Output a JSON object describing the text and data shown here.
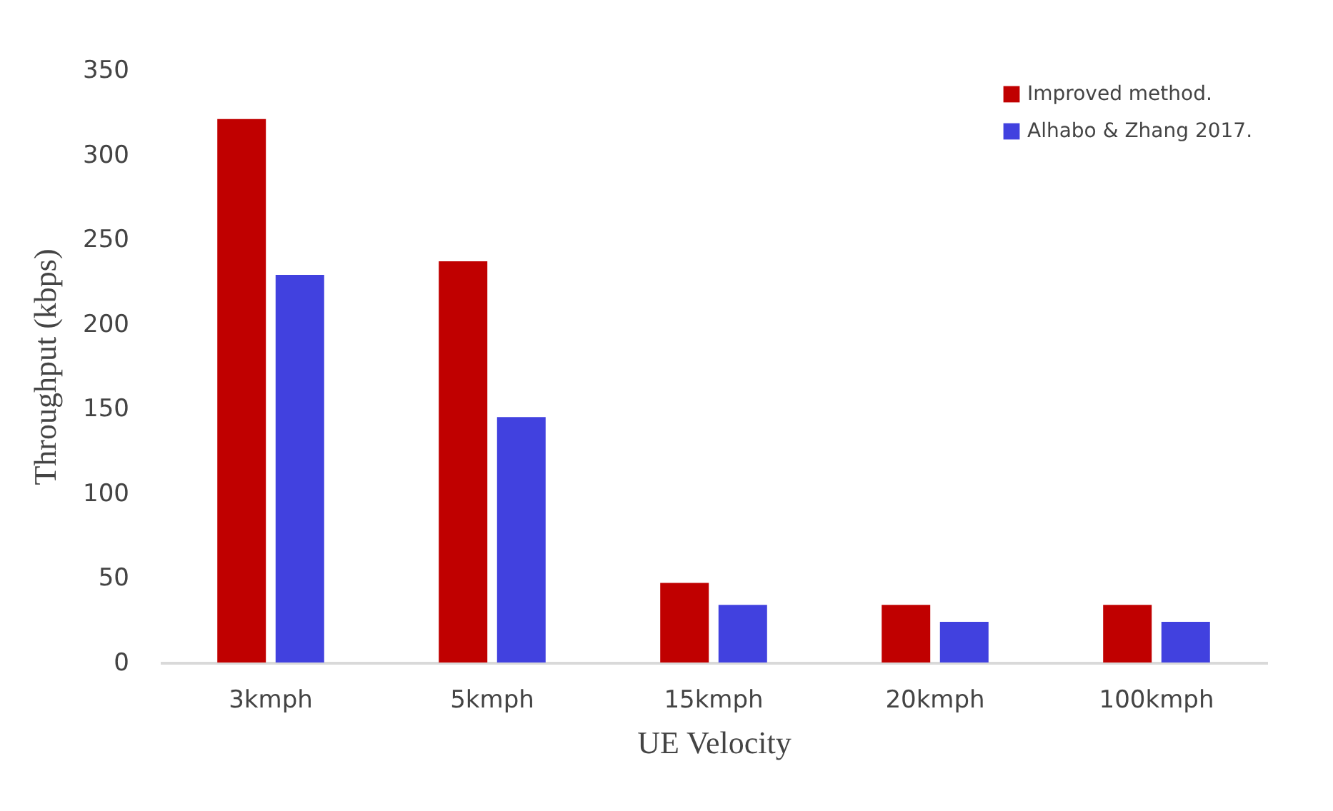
{
  "chart_data": {
    "type": "bar",
    "xlabel": "UE Velocity",
    "ylabel": "Throughput (kbps)",
    "categories": [
      "3kmph",
      "5kmph",
      "15kmph",
      "20kmph",
      "100kmph"
    ],
    "series": [
      {
        "name": "Improved method.",
        "color": "#c00000",
        "values": [
          321,
          237,
          47,
          34,
          34
        ]
      },
      {
        "name": "Alhabo & Zhang 2017.",
        "color": "#4141df",
        "values": [
          229,
          145,
          34,
          24,
          24
        ]
      }
    ],
    "ylim": [
      0,
      350
    ],
    "yticks": [
      0,
      50,
      100,
      150,
      200,
      250,
      300,
      350
    ],
    "grid": false,
    "legend": "top right"
  }
}
